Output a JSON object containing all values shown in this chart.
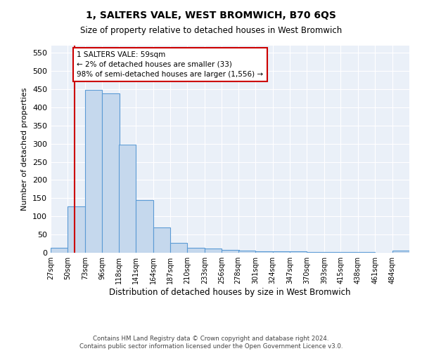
{
  "title": "1, SALTERS VALE, WEST BROMWICH, B70 6QS",
  "subtitle": "Size of property relative to detached houses in West Bromwich",
  "xlabel": "Distribution of detached houses by size in West Bromwich",
  "ylabel": "Number of detached properties",
  "bar_color": "#c5d8ed",
  "bar_edge_color": "#5b9bd5",
  "background_color": "#eaf0f8",
  "vline_x": 59,
  "vline_color": "#cc0000",
  "annotation_text": "1 SALTERS VALE: 59sqm\n← 2% of detached houses are smaller (33)\n98% of semi-detached houses are larger (1,556) →",
  "annotation_box_color": "#cc0000",
  "bin_edges": [
    27,
    50,
    73,
    96,
    118,
    141,
    164,
    187,
    210,
    233,
    256,
    278,
    301,
    324,
    347,
    370,
    393,
    415,
    438,
    461,
    484
  ],
  "bar_values": [
    14,
    127,
    449,
    438,
    297,
    145,
    69,
    27,
    14,
    12,
    8,
    6,
    4,
    3,
    3,
    2,
    2,
    2,
    1,
    0,
    6
  ],
  "xlim_left": 27,
  "xlim_right": 507,
  "ylim_top": 570,
  "yticks": [
    0,
    50,
    100,
    150,
    200,
    250,
    300,
    350,
    400,
    450,
    500,
    550
  ],
  "footer_text": "Contains HM Land Registry data © Crown copyright and database right 2024.\nContains public sector information licensed under the Open Government Licence v3.0.",
  "tick_labels": [
    "27sqm",
    "50sqm",
    "73sqm",
    "96sqm",
    "118sqm",
    "141sqm",
    "164sqm",
    "187sqm",
    "210sqm",
    "233sqm",
    "256sqm",
    "278sqm",
    "301sqm",
    "324sqm",
    "347sqm",
    "370sqm",
    "393sqm",
    "415sqm",
    "438sqm",
    "461sqm",
    "484sqm"
  ]
}
